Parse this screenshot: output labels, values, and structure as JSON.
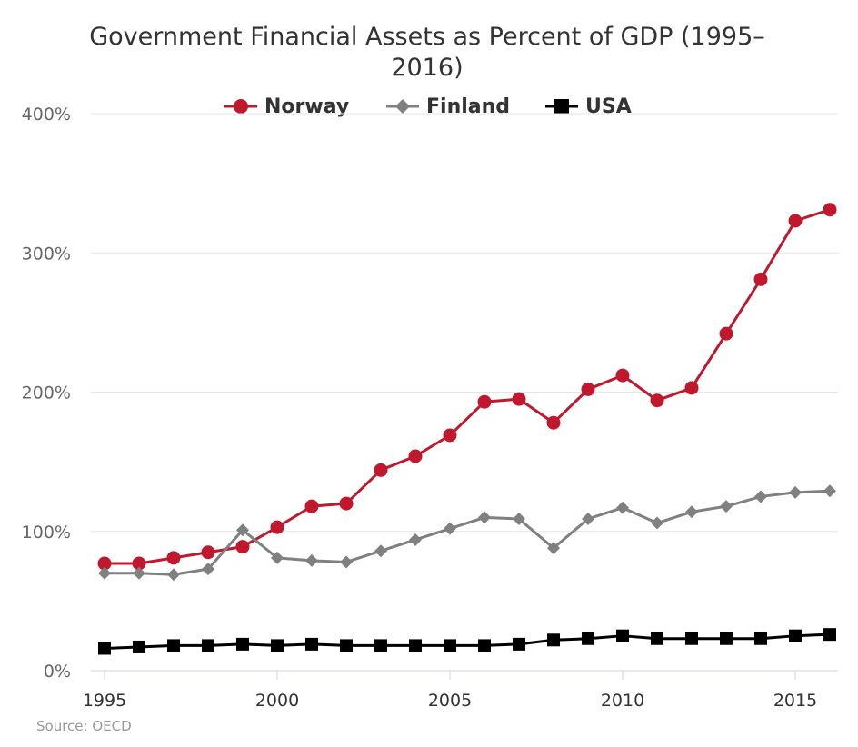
{
  "chart_data": {
    "type": "line",
    "title": "Government Financial Assets as Percent of GDP (1995–2016)",
    "xlabel": "",
    "ylabel": "",
    "x": [
      1995,
      1996,
      1997,
      1998,
      1999,
      2000,
      2001,
      2002,
      2003,
      2004,
      2005,
      2006,
      2007,
      2008,
      2009,
      2010,
      2011,
      2012,
      2013,
      2014,
      2015,
      2016
    ],
    "xlim": [
      1995,
      2016
    ],
    "ylim": [
      0,
      400
    ],
    "x_ticks": [
      1995,
      2000,
      2005,
      2010,
      2015
    ],
    "y_ticks": [
      0,
      100,
      200,
      300,
      400
    ],
    "y_tick_labels": [
      "0%",
      "100%",
      "200%",
      "300%",
      "400%"
    ],
    "grid": "horizontal",
    "legend_position": "top-center",
    "series": [
      {
        "name": "Norway",
        "color": "#c0182d",
        "marker": "circle",
        "values": [
          77,
          77,
          81,
          85,
          89,
          103,
          118,
          120,
          144,
          154,
          169,
          193,
          195,
          178,
          202,
          212,
          194,
          203,
          242,
          281,
          323,
          331
        ]
      },
      {
        "name": "Finland",
        "color": "#808080",
        "marker": "diamond",
        "values": [
          70,
          70,
          69,
          73,
          101,
          81,
          79,
          78,
          86,
          94,
          102,
          110,
          109,
          88,
          109,
          117,
          106,
          114,
          118,
          125,
          128,
          129
        ]
      },
      {
        "name": "USA",
        "color": "#000000",
        "marker": "square",
        "values": [
          16,
          17,
          18,
          18,
          19,
          18,
          19,
          18,
          18,
          18,
          18,
          18,
          19,
          22,
          23,
          25,
          23,
          23,
          23,
          23,
          25,
          26
        ]
      }
    ],
    "source": "Source: OECD"
  }
}
